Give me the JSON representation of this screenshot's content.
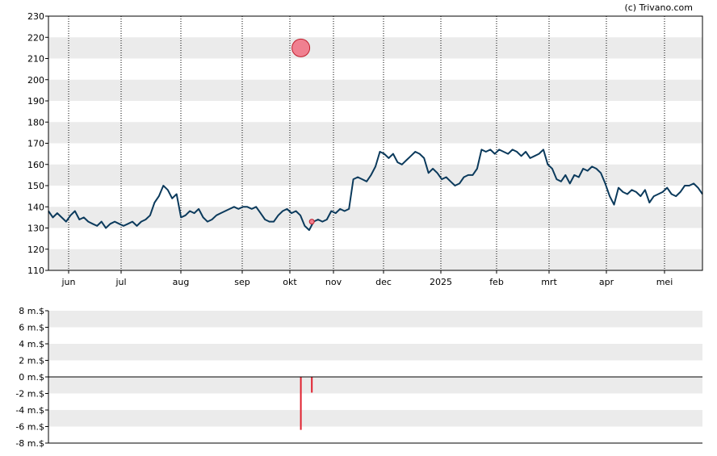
{
  "copyright": "(c) Trivano.com",
  "colors": {
    "band": "#ebebeb",
    "price_line": "#0b3a5c",
    "marker_fill": "#f08090",
    "marker_stroke": "#c0202e",
    "volume_bar": "#e0202e",
    "grid": "#000000"
  },
  "chart_data": [
    {
      "type": "line",
      "title": "",
      "xlabel": "",
      "ylabel": "",
      "ylim": [
        110,
        230
      ],
      "grid": true,
      "x_tick_labels": [
        "jun",
        "jul",
        "aug",
        "sep",
        "okt",
        "nov",
        "dec",
        "2025",
        "feb",
        "mrt",
        "apr",
        "mei"
      ],
      "y_ticks": [
        110,
        120,
        130,
        140,
        150,
        160,
        170,
        180,
        190,
        200,
        210,
        220,
        230
      ],
      "series": [
        {
          "values": [
            138,
            135,
            137,
            135,
            133,
            136,
            138,
            134,
            135,
            133,
            132,
            131,
            133,
            130,
            132,
            133,
            132,
            131,
            132,
            133,
            131,
            133,
            134,
            136,
            142,
            145,
            150,
            148,
            144,
            146,
            135,
            136,
            138,
            137,
            139,
            135,
            133,
            134,
            136,
            137,
            138,
            139,
            140,
            139,
            140,
            140,
            139,
            140,
            137,
            134,
            133,
            133,
            136,
            138,
            139,
            137,
            138,
            136,
            131,
            129,
            133,
            134,
            133,
            134,
            138,
            137,
            139,
            138,
            139,
            153,
            154,
            153,
            152,
            155,
            159,
            166,
            165,
            163,
            165,
            161,
            160,
            162,
            164,
            166,
            165,
            163,
            156,
            158,
            156,
            153,
            154,
            152,
            150,
            151,
            154,
            155,
            155,
            158,
            167,
            166,
            167,
            165,
            167,
            166,
            165,
            167,
            166,
            164,
            166,
            163,
            164,
            165,
            167,
            160,
            158,
            153,
            152,
            155,
            151,
            155,
            154,
            158,
            157,
            159,
            158,
            156,
            151,
            145,
            141,
            149,
            147,
            146,
            148,
            147,
            145,
            148,
            142,
            145,
            146,
            147,
            149,
            146,
            145,
            147,
            150,
            150,
            151,
            149,
            146
          ]
        }
      ],
      "markers": [
        {
          "x_month_fraction": 0.2,
          "month": "okt",
          "value": 215,
          "size": "large"
        },
        {
          "x_month_fraction": 0.4,
          "month": "okt",
          "value": 133,
          "size": "small"
        }
      ]
    },
    {
      "type": "bar",
      "title": "",
      "xlabel": "",
      "ylabel": "",
      "ylim": [
        -8,
        8
      ],
      "y_tick_labels": [
        "8 m.$",
        "6 m.$",
        "4 m.$",
        "2 m.$",
        "0 m.$",
        "-2 m.$",
        "-4 m.$",
        "-6 m.$",
        "-8 m.$"
      ],
      "y_ticks": [
        8,
        6,
        4,
        2,
        0,
        -2,
        -4,
        -6,
        -8
      ],
      "bars": [
        {
          "month": "okt",
          "x_month_fraction": 0.2,
          "value": -6.4
        },
        {
          "month": "okt",
          "x_month_fraction": 0.4,
          "value": -1.9
        }
      ]
    }
  ]
}
